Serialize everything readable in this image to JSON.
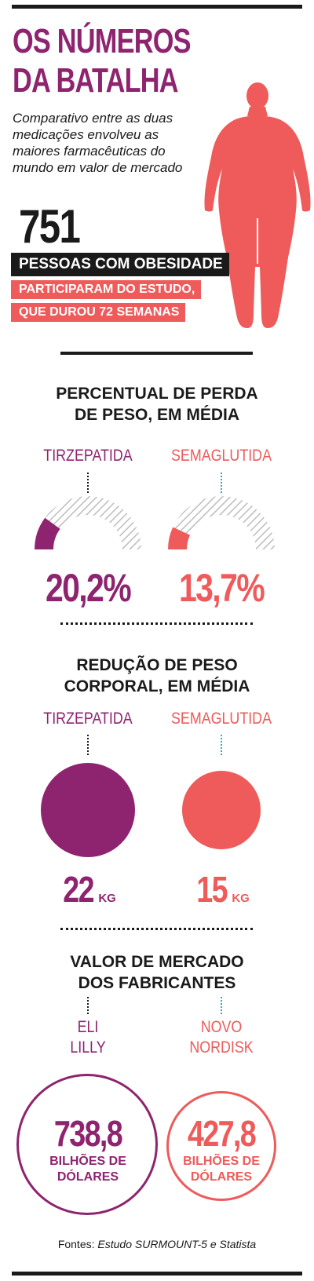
{
  "header": {
    "title_line1": "OS NÚMEROS",
    "title_line2": "DA BATALHA",
    "subtitle_line1": "Comparativo entre as duas",
    "subtitle_line2": "medicações envolveu as",
    "subtitle_line3": "maiores farmacêuticas do",
    "subtitle_line4": "mundo em valor de mercado"
  },
  "study": {
    "participants": "751",
    "participants_label": "PESSOAS COM OBESIDADE",
    "detail_line1": "PARTICIPARAM DO ESTUDO,",
    "detail_line2": "QUE DUROU 72 SEMANAS"
  },
  "weight_loss_pct": {
    "title_line1": "PERCENTUAL DE PERDA",
    "title_line2": "DE PESO, EM MÉDIA",
    "drug1": "TIRZEPATIDA",
    "drug2": "SEMAGLUTIDA",
    "value1": "20,2%",
    "value2": "13,7%",
    "fraction1": 0.202,
    "fraction2": 0.137
  },
  "weight_reduction": {
    "title_line1": "REDUÇÃO DE PESO",
    "title_line2": "CORPORAL, EM MÉDIA",
    "drug1": "TIRZEPATIDA",
    "drug2": "SEMAGLUTIDA",
    "value1": "22",
    "value2": "15",
    "unit": "KG"
  },
  "market_value": {
    "title_line1": "VALOR DE MERCADO",
    "title_line2": "DOS FABRICANTES",
    "company1_line1": "ELI",
    "company1_line2": "LILLY",
    "company2_line1": "NOVO",
    "company2_line2": "NORDISK",
    "value1": "738,8",
    "value2": "427,8",
    "unit_line1": "BILHÕES DE",
    "unit_line2": "DÓLARES"
  },
  "sources": {
    "prefix": "Fontes:",
    "text": "Estudo SURMOUNT-5 e Statista"
  },
  "colors": {
    "purple": "#8e246f",
    "coral": "#ef5a5a",
    "dark": "#1a1a1a",
    "teal_dots": "#34aab7"
  }
}
